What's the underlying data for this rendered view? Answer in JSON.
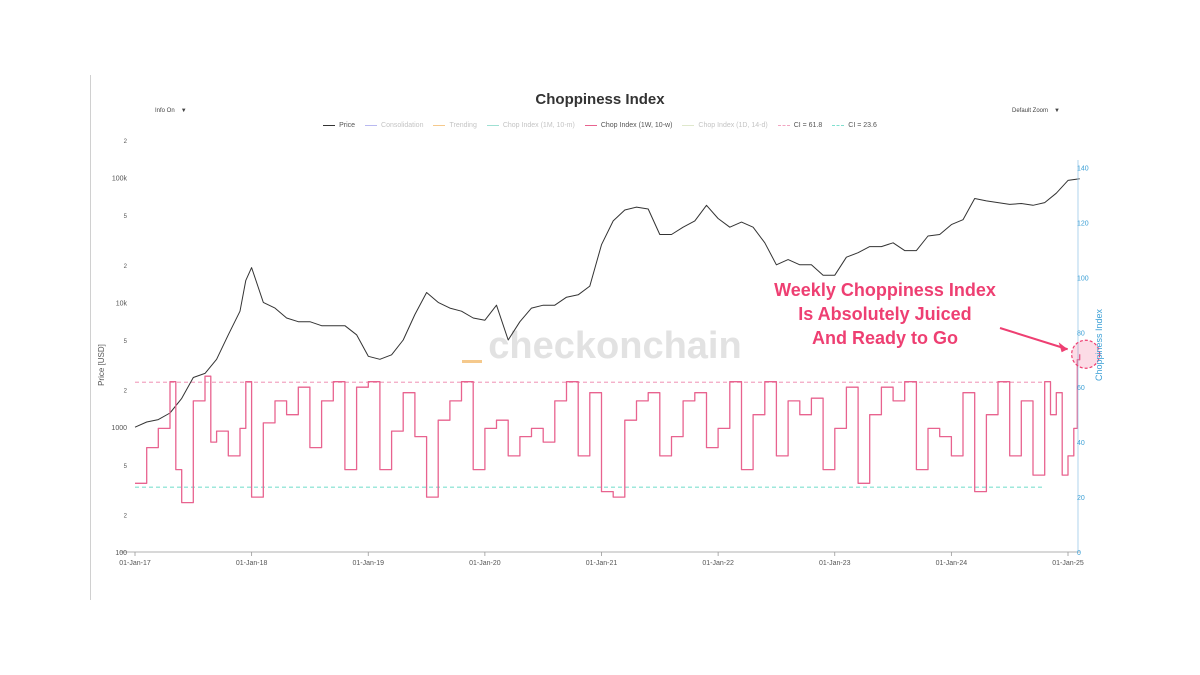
{
  "controls": {
    "info": "Info On",
    "zoom": "Default Zoom"
  },
  "chart_data": {
    "type": "line",
    "title": "Choppiness Index",
    "xlabel": "",
    "ylabel_left": "Price [USD]",
    "ylabel_right": "Choppiness Index",
    "x_ticks": [
      "01-Jan-17",
      "01-Jan-18",
      "01-Jan-19",
      "01-Jan-20",
      "01-Jan-21",
      "01-Jan-22",
      "01-Jan-23",
      "01-Jan-24",
      "01-Jan-25"
    ],
    "y_left_ticks": [
      "2",
      "100k",
      "5",
      "2",
      "10k",
      "5",
      "2",
      "1000",
      "5",
      "2",
      "100"
    ],
    "y_left_scale": "log",
    "y_left_range": [
      100,
      200000
    ],
    "y_right_ticks": [
      "0",
      "20",
      "40",
      "60",
      "80",
      "100",
      "120",
      "140"
    ],
    "y_right_range": [
      0,
      150
    ],
    "legend": [
      {
        "name": "Price",
        "color": "#333333",
        "style": "solid",
        "visible": true
      },
      {
        "name": "Consolidation",
        "color": "#b9b9f0",
        "style": "solid",
        "visible": false
      },
      {
        "name": "Trending",
        "color": "#f5c98c",
        "style": "solid",
        "visible": false
      },
      {
        "name": "Chop Index (1M, 10-m)",
        "color": "#9fe0d3",
        "style": "solid",
        "visible": false
      },
      {
        "name": "Chop Index (1W, 10-w)",
        "color": "#e8638f",
        "style": "solid",
        "visible": true
      },
      {
        "name": "Chop Index (1D, 14-d)",
        "color": "#dfe8cc",
        "style": "solid",
        "visible": false
      },
      {
        "name": "CI = 61.8",
        "color": "#f2a6c2",
        "style": "dash",
        "visible": true
      },
      {
        "name": "CI = 23.6",
        "color": "#7fe0cf",
        "style": "dash",
        "visible": true
      }
    ],
    "reference_lines": [
      {
        "label": "CI = 61.8",
        "value": 61.8
      },
      {
        "label": "CI = 23.6",
        "value": 23.6
      }
    ],
    "series": [
      {
        "name": "Price",
        "axis": "left",
        "x": [
          2017.0,
          2017.1,
          2017.2,
          2017.3,
          2017.4,
          2017.5,
          2017.6,
          2017.7,
          2017.8,
          2017.9,
          2017.95,
          2018.0,
          2018.1,
          2018.2,
          2018.3,
          2018.4,
          2018.5,
          2018.6,
          2018.7,
          2018.8,
          2018.9,
          2019.0,
          2019.1,
          2019.2,
          2019.3,
          2019.4,
          2019.5,
          2019.6,
          2019.7,
          2019.8,
          2019.9,
          2020.0,
          2020.1,
          2020.2,
          2020.3,
          2020.4,
          2020.5,
          2020.6,
          2020.7,
          2020.8,
          2020.9,
          2021.0,
          2021.1,
          2021.2,
          2021.3,
          2021.4,
          2021.5,
          2021.6,
          2021.7,
          2021.8,
          2021.9,
          2022.0,
          2022.1,
          2022.2,
          2022.3,
          2022.4,
          2022.5,
          2022.6,
          2022.7,
          2022.8,
          2022.9,
          2023.0,
          2023.1,
          2023.2,
          2023.3,
          2023.4,
          2023.5,
          2023.6,
          2023.7,
          2023.8,
          2023.9,
          2024.0,
          2024.1,
          2024.2,
          2024.3,
          2024.4,
          2024.5,
          2024.6,
          2024.7,
          2024.8,
          2024.9,
          2025.0,
          2025.1
        ],
        "values": [
          1000,
          1100,
          1150,
          1300,
          1700,
          2500,
          2700,
          3500,
          5500,
          8500,
          15000,
          19000,
          10000,
          9000,
          7500,
          7000,
          7000,
          6500,
          6500,
          6500,
          5500,
          3700,
          3500,
          3800,
          5000,
          8000,
          12000,
          10000,
          9000,
          8500,
          7500,
          7200,
          9500,
          5000,
          7000,
          9000,
          9500,
          9500,
          11000,
          11500,
          13500,
          29000,
          45000,
          55000,
          58000,
          56000,
          35000,
          35000,
          40000,
          45000,
          60000,
          47000,
          40000,
          44000,
          40000,
          30000,
          20000,
          22000,
          20000,
          20000,
          16500,
          16500,
          23000,
          25000,
          28000,
          28000,
          30000,
          26000,
          26000,
          34000,
          35000,
          42000,
          46000,
          68000,
          65000,
          63000,
          61000,
          62000,
          60000,
          63000,
          75000,
          95000,
          98000
        ]
      },
      {
        "name": "Chop Index (1W, 10-w)",
        "axis": "right",
        "x": [
          2017.0,
          2017.1,
          2017.2,
          2017.3,
          2017.35,
          2017.4,
          2017.5,
          2017.6,
          2017.65,
          2017.7,
          2017.8,
          2017.9,
          2017.95,
          2018.0,
          2018.1,
          2018.2,
          2018.3,
          2018.4,
          2018.5,
          2018.6,
          2018.7,
          2018.8,
          2018.9,
          2019.0,
          2019.1,
          2019.2,
          2019.3,
          2019.4,
          2019.5,
          2019.6,
          2019.7,
          2019.8,
          2019.9,
          2020.0,
          2020.1,
          2020.2,
          2020.3,
          2020.4,
          2020.5,
          2020.6,
          2020.7,
          2020.8,
          2020.9,
          2021.0,
          2021.1,
          2021.2,
          2021.3,
          2021.4,
          2021.5,
          2021.6,
          2021.7,
          2021.8,
          2021.9,
          2022.0,
          2022.1,
          2022.2,
          2022.3,
          2022.4,
          2022.5,
          2022.6,
          2022.7,
          2022.8,
          2022.9,
          2023.0,
          2023.1,
          2023.2,
          2023.3,
          2023.4,
          2023.5,
          2023.6,
          2023.7,
          2023.8,
          2023.9,
          2024.0,
          2024.1,
          2024.2,
          2024.3,
          2024.4,
          2024.5,
          2024.6,
          2024.7,
          2024.8,
          2024.85,
          2024.9,
          2024.95,
          2025.0,
          2025.05,
          2025.08,
          2025.1
        ],
        "values": [
          25,
          38,
          45,
          62,
          30,
          18,
          55,
          64,
          40,
          44,
          35,
          45,
          62,
          20,
          47,
          55,
          50,
          60,
          38,
          55,
          62,
          30,
          60,
          62,
          30,
          44,
          58,
          42,
          20,
          48,
          55,
          62,
          30,
          45,
          48,
          35,
          42,
          45,
          40,
          55,
          62,
          35,
          58,
          22,
          20,
          48,
          55,
          58,
          35,
          42,
          55,
          58,
          38,
          45,
          62,
          30,
          50,
          62,
          35,
          55,
          50,
          56,
          30,
          45,
          60,
          25,
          50,
          60,
          55,
          62,
          30,
          45,
          42,
          35,
          58,
          22,
          50,
          62,
          35,
          55,
          28,
          62,
          50,
          58,
          28,
          35,
          45,
          70,
          72
        ]
      }
    ],
    "annotation": {
      "lines": [
        "Weekly Choppiness Index",
        "Is Absolutely Juiced",
        "And Ready to Go"
      ],
      "color": "#ee3f72"
    },
    "watermark": "checkonchain"
  }
}
